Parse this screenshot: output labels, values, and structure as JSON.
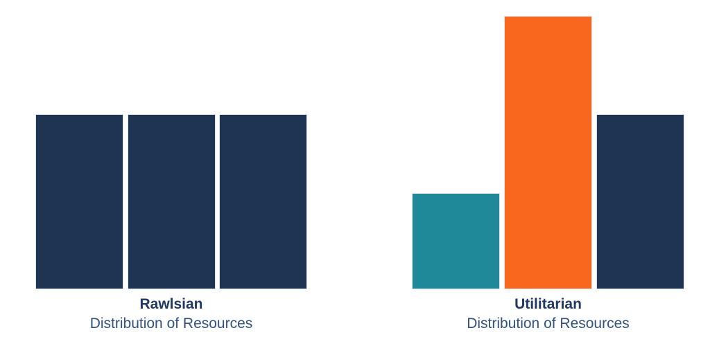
{
  "colors": {
    "background": "#ffffff",
    "navy": "#1F3352",
    "teal": "#1F8899",
    "orange": "#F8671D",
    "title_text": "#1F3864",
    "subtitle_text": "#31517E"
  },
  "chart_data": [
    {
      "type": "bar",
      "title": "Rawlsian",
      "subtitle": "Distribution of Resources",
      "values": [
        1,
        1,
        1
      ],
      "bar_colors": [
        "#1F3352",
        "#1F3352",
        "#1F3352"
      ],
      "xlabel": "",
      "ylabel": "",
      "ylim": [
        0,
        1.56
      ],
      "grid": false,
      "legend": false,
      "axes_visible": false
    },
    {
      "type": "bar",
      "title": "Utilitarian",
      "subtitle": "Distribution of Resources",
      "values": [
        0.55,
        1.56,
        1
      ],
      "bar_colors": [
        "#1F8899",
        "#F8671D",
        "#1F3352"
      ],
      "xlabel": "",
      "ylabel": "",
      "ylim": [
        0,
        1.56
      ],
      "grid": false,
      "legend": false,
      "axes_visible": false
    }
  ]
}
